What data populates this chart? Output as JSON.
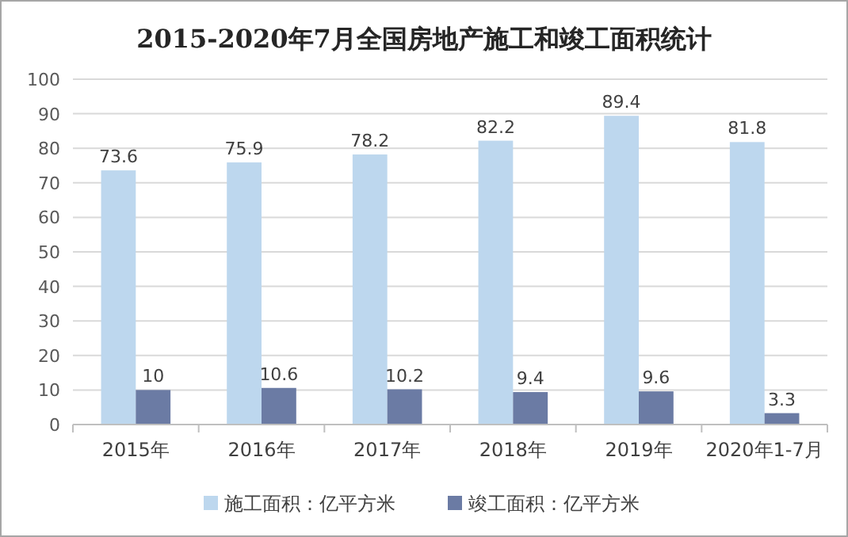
{
  "chart_data": {
    "type": "bar",
    "title": "2015-2020年7月全国房地产施工和竣工面积统计",
    "categories": [
      "2015年",
      "2016年",
      "2017年",
      "2018年",
      "2019年",
      "2020年1-7月"
    ],
    "series": [
      {
        "name": "施工面积：亿平方米",
        "color": "#bdd7ee",
        "values": [
          73.6,
          75.9,
          78.2,
          82.2,
          89.4,
          81.8
        ]
      },
      {
        "name": "竣工面积：亿平方米",
        "color": "#6b7ba4",
        "values": [
          10,
          10.6,
          10.2,
          9.4,
          9.6,
          3.3
        ]
      }
    ],
    "ylim": [
      0,
      100
    ],
    "yticks": [
      0,
      10,
      20,
      30,
      40,
      50,
      60,
      70,
      80,
      90,
      100
    ],
    "grid": "y",
    "legend": "bottom",
    "data_labels": true
  }
}
